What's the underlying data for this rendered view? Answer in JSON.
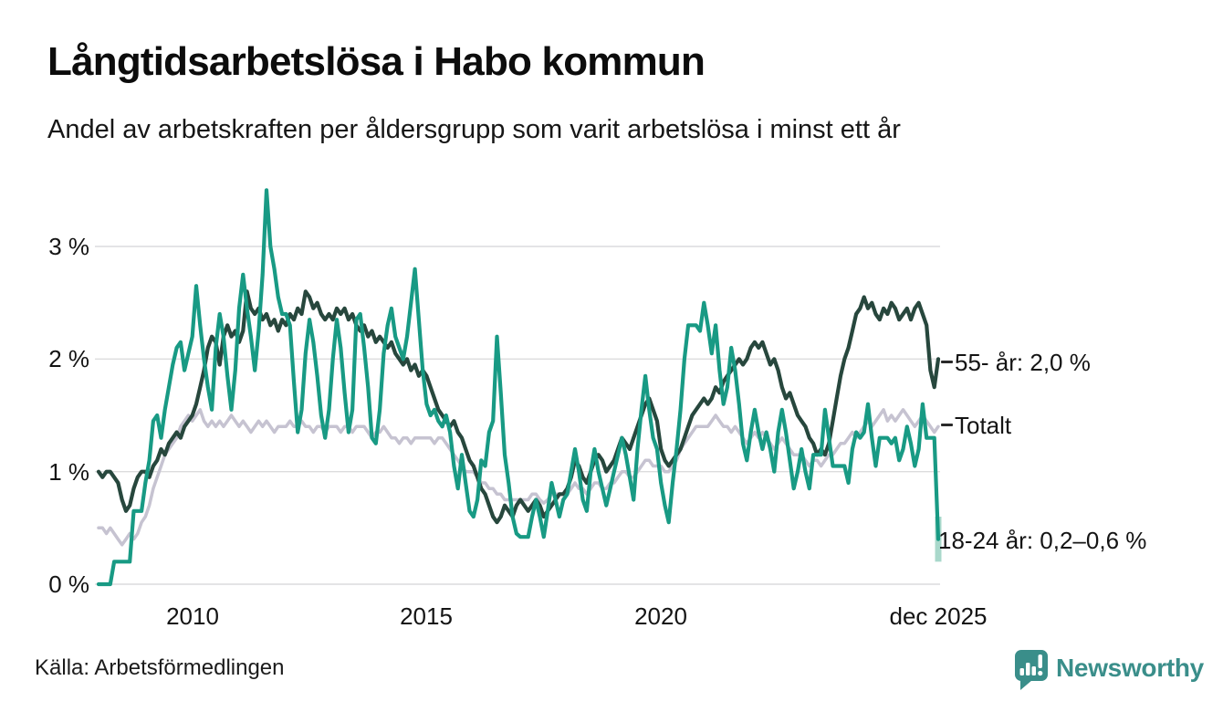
{
  "header": {
    "title": "Långtidsarbetslösa i Habo kommun",
    "subtitle": "Andel av arbetskraften per åldersgrupp som varit arbetslösa i minst ett år"
  },
  "footer": {
    "source": "Källa: Arbetsförmedlingen",
    "brand": "Newsworthy"
  },
  "colors": {
    "teal_line": "#189a84",
    "dark_green_line": "#27473d",
    "gray_line": "#c6c3d1",
    "uncertainty_band": "#a9d8cb",
    "grid": "#dcdcdd",
    "brand_teal": "#3a8e8a",
    "text": "#141414"
  },
  "chart_data": {
    "type": "line",
    "title": "Långtidsarbetslösa i Habo kommun",
    "subtitle": "Andel av arbetskraften per åldersgrupp som varit arbetslösa i minst ett år",
    "unit": "% av arbetskraften",
    "frequency": "monthly",
    "x_range": {
      "start": "jan 2008",
      "end": "dec 2025",
      "points_per_series": 216
    },
    "ylim": [
      0,
      3.6
    ],
    "grid": true,
    "legend_position": "right-annotations",
    "yticks": [
      {
        "value": 3,
        "label": "3 %"
      },
      {
        "value": 2,
        "label": "2 %"
      },
      {
        "value": 1,
        "label": "1 %"
      },
      {
        "value": 0,
        "label": "0 %"
      }
    ],
    "xticks": [
      {
        "x": "2010",
        "label": "2010"
      },
      {
        "x": "2015",
        "label": "2015"
      },
      {
        "x": "2020",
        "label": "2020"
      },
      {
        "x": "dec 2025",
        "label": "dec 2025"
      }
    ],
    "annotations": [
      {
        "series": "55- år",
        "text": "55- år: 2,0 %",
        "value": 2.0
      },
      {
        "series": "Totalt",
        "text": "Totalt",
        "value": 1.41
      },
      {
        "series": "18-24 år",
        "text": "18-24 år: 0,2–0,6 %",
        "value": 0.39
      }
    ],
    "uncertainty_band": {
      "series": "18-24 år",
      "period": "dec 2025",
      "low": 0.2,
      "high": 0.6,
      "color": "#a9d8cb"
    },
    "series": [
      {
        "id": "totalt",
        "name": "Totalt",
        "color": "#c6c3d1",
        "last_value": 1.4,
        "values": [
          0.5,
          0.5,
          0.45,
          0.5,
          0.45,
          0.4,
          0.35,
          0.4,
          0.45,
          0.4,
          0.45,
          0.55,
          0.6,
          0.7,
          0.85,
          0.95,
          1.05,
          1.15,
          1.2,
          1.25,
          1.3,
          1.4,
          1.45,
          1.5,
          1.45,
          1.5,
          1.55,
          1.45,
          1.4,
          1.45,
          1.4,
          1.45,
          1.4,
          1.45,
          1.5,
          1.45,
          1.4,
          1.45,
          1.4,
          1.35,
          1.4,
          1.45,
          1.4,
          1.45,
          1.4,
          1.35,
          1.4,
          1.4,
          1.4,
          1.45,
          1.4,
          1.4,
          1.45,
          1.4,
          1.4,
          1.35,
          1.4,
          1.4,
          1.35,
          1.4,
          1.4,
          1.4,
          1.35,
          1.4,
          1.4,
          1.35,
          1.4,
          1.4,
          1.4,
          1.35,
          1.3,
          1.35,
          1.35,
          1.4,
          1.35,
          1.3,
          1.3,
          1.25,
          1.3,
          1.3,
          1.25,
          1.3,
          1.3,
          1.3,
          1.3,
          1.3,
          1.25,
          1.3,
          1.3,
          1.25,
          1.2,
          1.15,
          1.1,
          1.05,
          1.0,
          1.0,
          1.0,
          0.95,
          0.9,
          0.9,
          0.85,
          0.85,
          0.8,
          0.8,
          0.75,
          0.75,
          0.75,
          0.75,
          0.75,
          0.75,
          0.75,
          0.8,
          0.8,
          0.75,
          0.72,
          0.75,
          0.8,
          0.8,
          0.8,
          0.8,
          0.8,
          0.85,
          0.9,
          0.85,
          0.85,
          0.8,
          0.85,
          0.9,
          0.9,
          0.85,
          0.85,
          0.9,
          0.9,
          0.95,
          1.0,
          1.0,
          0.95,
          0.95,
          1.0,
          1.05,
          1.1,
          1.1,
          1.05,
          1.05,
          1.05,
          1.0,
          1.0,
          1.05,
          1.1,
          1.2,
          1.25,
          1.3,
          1.35,
          1.4,
          1.4,
          1.4,
          1.4,
          1.45,
          1.5,
          1.45,
          1.4,
          1.4,
          1.35,
          1.4,
          1.35,
          1.3,
          1.25,
          1.3,
          1.35,
          1.3,
          1.35,
          1.3,
          1.25,
          1.2,
          1.25,
          1.3,
          1.25,
          1.2,
          1.15,
          1.15,
          1.15,
          1.1,
          1.05,
          1.1,
          1.1,
          1.05,
          1.1,
          1.15,
          1.15,
          1.2,
          1.25,
          1.25,
          1.3,
          1.35,
          1.3,
          1.35,
          1.4,
          1.45,
          1.4,
          1.45,
          1.5,
          1.55,
          1.45,
          1.5,
          1.45,
          1.5,
          1.55,
          1.5,
          1.45,
          1.4,
          1.45,
          1.5,
          1.45,
          1.4,
          1.35,
          1.4
        ]
      },
      {
        "id": "age55",
        "name": "55- år",
        "color": "#27473d",
        "last_value": 2.0,
        "values": [
          1.0,
          0.95,
          1.0,
          1.0,
          0.95,
          0.9,
          0.75,
          0.65,
          0.7,
          0.85,
          0.95,
          1.0,
          1.0,
          0.95,
          1.05,
          1.1,
          1.2,
          1.15,
          1.25,
          1.3,
          1.35,
          1.3,
          1.4,
          1.45,
          1.5,
          1.6,
          1.75,
          1.9,
          2.1,
          2.2,
          2.15,
          1.95,
          2.2,
          2.3,
          2.2,
          2.25,
          2.15,
          2.25,
          2.6,
          2.45,
          2.4,
          2.45,
          2.35,
          2.4,
          2.3,
          2.35,
          2.25,
          2.35,
          2.3,
          2.4,
          2.35,
          2.45,
          2.4,
          2.6,
          2.55,
          2.45,
          2.5,
          2.4,
          2.35,
          2.4,
          2.35,
          2.45,
          2.4,
          2.45,
          2.35,
          2.4,
          2.3,
          2.25,
          2.3,
          2.2,
          2.25,
          2.15,
          2.2,
          2.15,
          2.1,
          2.15,
          2.05,
          2.0,
          1.95,
          2.0,
          1.9,
          1.95,
          1.85,
          1.9,
          1.85,
          1.75,
          1.65,
          1.55,
          1.5,
          1.45,
          1.4,
          1.45,
          1.35,
          1.3,
          1.2,
          1.1,
          1.05,
          0.95,
          0.85,
          0.8,
          0.7,
          0.6,
          0.55,
          0.6,
          0.7,
          0.65,
          0.6,
          0.7,
          0.75,
          0.7,
          0.65,
          0.7,
          0.75,
          0.7,
          0.6,
          0.65,
          0.7,
          0.75,
          0.8,
          0.8,
          0.85,
          0.95,
          1.1,
          1.05,
          0.95,
          0.9,
          1.0,
          1.1,
          1.15,
          1.1,
          1.0,
          1.05,
          1.1,
          1.2,
          1.3,
          1.25,
          1.2,
          1.3,
          1.4,
          1.5,
          1.6,
          1.65,
          1.55,
          1.45,
          1.2,
          1.1,
          1.05,
          1.1,
          1.15,
          1.2,
          1.3,
          1.4,
          1.5,
          1.55,
          1.6,
          1.65,
          1.6,
          1.65,
          1.75,
          1.7,
          1.8,
          1.85,
          1.9,
          1.95,
          2.0,
          1.95,
          2.0,
          2.1,
          2.15,
          2.1,
          2.15,
          2.05,
          1.95,
          2.0,
          1.9,
          1.75,
          1.65,
          1.7,
          1.6,
          1.5,
          1.45,
          1.4,
          1.3,
          1.25,
          1.15,
          1.2,
          1.15,
          1.25,
          1.45,
          1.65,
          1.85,
          2.0,
          2.1,
          2.25,
          2.4,
          2.45,
          2.55,
          2.45,
          2.5,
          2.4,
          2.35,
          2.45,
          2.4,
          2.5,
          2.45,
          2.35,
          2.4,
          2.45,
          2.35,
          2.45,
          2.5,
          2.4,
          2.3,
          1.9,
          1.75,
          2.0
        ]
      },
      {
        "id": "age1824",
        "name": "18-24 år",
        "color": "#189a84",
        "last_value": 0.4,
        "values": [
          0.0,
          0.0,
          0.0,
          0.0,
          0.2,
          0.2,
          0.2,
          0.2,
          0.2,
          0.65,
          0.65,
          0.65,
          0.9,
          1.1,
          1.45,
          1.5,
          1.3,
          1.55,
          1.75,
          1.95,
          2.1,
          2.15,
          1.9,
          2.05,
          2.2,
          2.65,
          2.3,
          2.0,
          1.75,
          1.55,
          2.1,
          2.4,
          2.2,
          1.85,
          1.55,
          1.9,
          2.45,
          2.75,
          2.45,
          2.2,
          1.9,
          2.25,
          2.75,
          3.5,
          3.0,
          2.8,
          2.55,
          2.4,
          2.4,
          2.3,
          1.8,
          1.35,
          1.55,
          2.05,
          2.35,
          2.15,
          1.85,
          1.5,
          1.3,
          1.55,
          2.0,
          2.35,
          2.1,
          1.7,
          1.35,
          1.55,
          2.35,
          2.4,
          2.1,
          1.75,
          1.3,
          1.25,
          1.55,
          2.05,
          2.3,
          2.45,
          2.2,
          2.1,
          2.0,
          2.2,
          2.5,
          2.8,
          2.35,
          1.9,
          1.6,
          1.5,
          1.55,
          1.45,
          1.4,
          1.5,
          1.35,
          1.05,
          0.85,
          1.15,
          0.9,
          0.65,
          0.6,
          0.75,
          1.1,
          1.05,
          1.35,
          1.45,
          2.2,
          1.7,
          1.15,
          0.9,
          0.6,
          0.45,
          0.42,
          0.42,
          0.42,
          0.6,
          0.75,
          0.6,
          0.42,
          0.65,
          0.9,
          0.75,
          0.6,
          0.75,
          0.8,
          1.0,
          1.2,
          1.0,
          0.75,
          0.65,
          1.0,
          1.2,
          1.0,
          0.85,
          0.7,
          0.85,
          1.0,
          1.15,
          1.3,
          1.15,
          0.95,
          0.75,
          1.2,
          1.55,
          1.85,
          1.55,
          1.3,
          1.2,
          0.9,
          0.7,
          0.55,
          0.9,
          1.2,
          1.55,
          2.0,
          2.3,
          2.3,
          2.3,
          2.25,
          2.5,
          2.3,
          2.05,
          2.3,
          1.9,
          1.6,
          1.75,
          2.1,
          1.9,
          1.6,
          1.25,
          1.1,
          1.35,
          1.55,
          1.35,
          1.2,
          1.35,
          1.2,
          1.0,
          1.35,
          1.55,
          1.35,
          1.1,
          0.85,
          1.0,
          1.2,
          1.0,
          0.85,
          1.15,
          1.15,
          1.15,
          1.55,
          1.3,
          1.05,
          1.05,
          1.05,
          1.05,
          0.9,
          1.2,
          1.35,
          1.3,
          1.35,
          1.6,
          1.3,
          1.05,
          1.3,
          1.3,
          1.3,
          1.25,
          1.3,
          1.1,
          1.2,
          1.4,
          1.25,
          1.05,
          1.2,
          1.6,
          1.3,
          1.3,
          1.3,
          0.4
        ]
      }
    ]
  }
}
